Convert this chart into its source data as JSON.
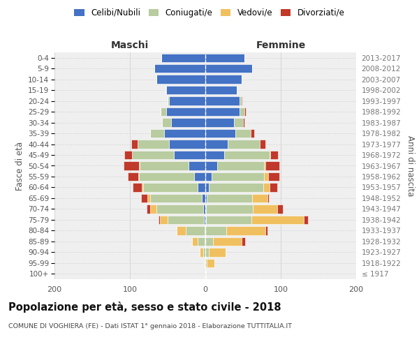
{
  "age_groups": [
    "100+",
    "95-99",
    "90-94",
    "85-89",
    "80-84",
    "75-79",
    "70-74",
    "65-69",
    "60-64",
    "55-59",
    "50-54",
    "45-49",
    "40-44",
    "35-39",
    "30-34",
    "25-29",
    "20-24",
    "15-19",
    "10-14",
    "5-9",
    "0-4"
  ],
  "birth_years": [
    "≤ 1917",
    "1918-1922",
    "1923-1927",
    "1928-1932",
    "1933-1937",
    "1938-1942",
    "1943-1947",
    "1948-1952",
    "1953-1957",
    "1958-1962",
    "1963-1967",
    "1968-1972",
    "1973-1977",
    "1978-1982",
    "1983-1987",
    "1988-1992",
    "1993-1997",
    "1998-2002",
    "2003-2007",
    "2008-2012",
    "2013-2017"
  ],
  "maschi_celibi": [
    0,
    0,
    0,
    1,
    1,
    2,
    3,
    5,
    10,
    15,
    22,
    42,
    48,
    55,
    45,
    52,
    48,
    52,
    65,
    68,
    58
  ],
  "maschi_coniugati": [
    0,
    1,
    3,
    9,
    25,
    48,
    62,
    68,
    72,
    73,
    65,
    55,
    42,
    18,
    12,
    7,
    2,
    1,
    0,
    0,
    0
  ],
  "maschi_vedovi": [
    0,
    1,
    4,
    8,
    12,
    10,
    8,
    4,
    2,
    1,
    1,
    0,
    0,
    0,
    0,
    0,
    0,
    0,
    0,
    0,
    0
  ],
  "maschi_divorziati": [
    0,
    0,
    0,
    0,
    0,
    2,
    5,
    8,
    12,
    14,
    20,
    10,
    8,
    0,
    0,
    0,
    0,
    0,
    0,
    0,
    0
  ],
  "femmine_nubili": [
    0,
    0,
    0,
    0,
    0,
    1,
    1,
    2,
    5,
    8,
    16,
    25,
    30,
    40,
    38,
    45,
    45,
    42,
    48,
    62,
    52
  ],
  "femmine_coniugate": [
    0,
    2,
    5,
    10,
    28,
    60,
    62,
    60,
    72,
    70,
    62,
    60,
    42,
    20,
    12,
    7,
    3,
    1,
    0,
    0,
    0
  ],
  "femmine_vedove": [
    1,
    10,
    22,
    38,
    52,
    70,
    32,
    20,
    8,
    5,
    2,
    1,
    0,
    0,
    0,
    0,
    0,
    0,
    0,
    0,
    0
  ],
  "femmine_divorziate": [
    0,
    0,
    0,
    5,
    2,
    5,
    8,
    2,
    10,
    15,
    18,
    10,
    8,
    5,
    2,
    2,
    1,
    0,
    0,
    0,
    0
  ],
  "col_celibi": "#4472c4",
  "col_coniugati": "#b8cca0",
  "col_vedovi": "#f0c060",
  "col_divorziati": "#c0392b",
  "title": "Popolazione per età, sesso e stato civile - 2018",
  "subtitle": "COMUNE DI VOGHIERA (FE) - Dati ISTAT 1° gennaio 2018 - Elaborazione TUTTITALIA.IT",
  "label_maschi": "Maschi",
  "label_femmine": "Femmine",
  "ylabel_left": "Fasce di età",
  "ylabel_right": "Anni di nascita",
  "legend_labels": [
    "Celibi/Nubili",
    "Coniugati/e",
    "Vedovi/e",
    "Divorziati/e"
  ],
  "xlim": 200,
  "bg_color": "#ffffff",
  "plot_bg": "#efefef"
}
